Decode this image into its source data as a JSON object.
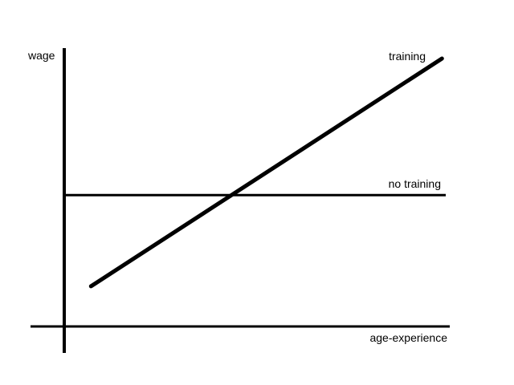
{
  "chart_data": {
    "type": "line",
    "title": "",
    "xlabel": "age-experience",
    "ylabel": "wage",
    "series": [
      {
        "name": "training",
        "x": [
          0.07,
          0.99
        ],
        "y": [
          0.15,
          1.0
        ]
      },
      {
        "name": "no training",
        "x": [
          0.0,
          1.0
        ],
        "y": [
          0.49,
          0.49
        ]
      }
    ],
    "xlim": [
      0,
      1
    ],
    "ylim": [
      0,
      1
    ],
    "grid": false,
    "legend": "inline labels at line ends",
    "colors": {
      "line": "#000000",
      "background": "#ffffff"
    }
  }
}
